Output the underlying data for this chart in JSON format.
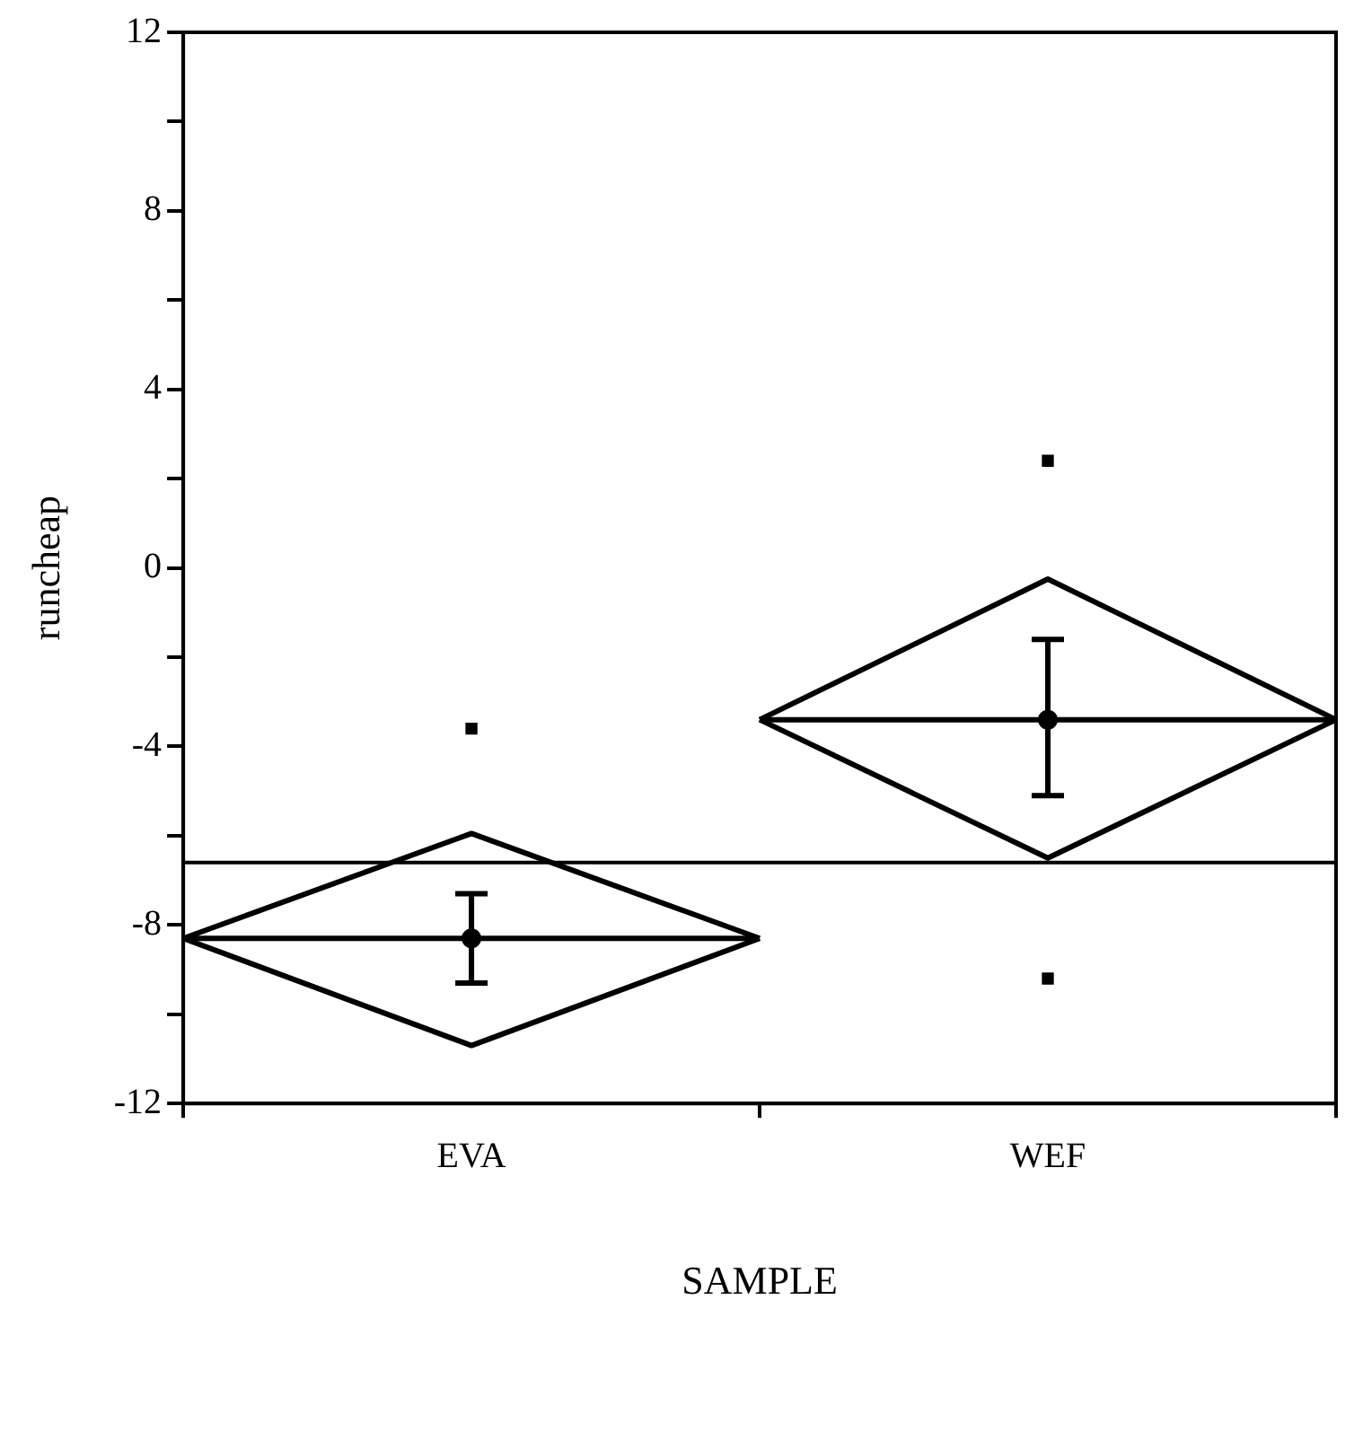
{
  "chart_data": {
    "type": "scatter",
    "xlabel": "SAMPLE",
    "ylabel": "runcheap",
    "categories": [
      null,
      "EVA",
      null,
      "WEF",
      null
    ],
    "ylim": [
      -12,
      12
    ],
    "yticks": [
      -12,
      {
        "value": -10,
        "label": null
      },
      -8,
      {
        "value": -6,
        "label": null
      },
      -4,
      {
        "value": -2,
        "label": null
      },
      0,
      {
        "value": 2,
        "label": null
      },
      4,
      {
        "value": 6,
        "label": null
      },
      8,
      {
        "value": 10,
        "label": null
      },
      12
    ],
    "grid": false,
    "legend": false,
    "ref_lines": [
      {
        "axis": "y",
        "value": -6.6,
        "color": "#000000"
      }
    ],
    "series": [
      {
        "type": "line",
        "color": "#000000",
        "marker": "none",
        "values": [
          -8.3,
          -5.95,
          -8.3,
          null,
          null
        ]
      },
      {
        "type": "line",
        "color": "#000000",
        "marker": "none",
        "values": [
          -8.3,
          -8.3,
          -8.3,
          null,
          null
        ]
      },
      {
        "type": "line",
        "color": "#000000",
        "marker": "none",
        "values": [
          -8.3,
          -10.7,
          -8.3,
          null,
          null
        ]
      },
      {
        "type": "line",
        "color": "#000000",
        "marker": "none",
        "values": [
          null,
          null,
          -3.4,
          -0.25,
          -3.4
        ]
      },
      {
        "type": "line",
        "color": "#000000",
        "marker": "none",
        "values": [
          null,
          null,
          -3.4,
          -3.4,
          -3.4
        ]
      },
      {
        "type": "line",
        "color": "#000000",
        "marker": "none",
        "values": [
          null,
          null,
          -3.4,
          -6.5,
          -3.4
        ]
      },
      {
        "color": "#000000",
        "marker": "circle",
        "values": [
          null,
          -8.3,
          null,
          -3.4,
          null
        ],
        "errors": [
          null,
          [
            -9.3,
            -7.3
          ],
          null,
          [
            -5.1,
            -1.6
          ],
          null
        ]
      },
      {
        "color": "#000000",
        "marker": "square",
        "values": [
          null,
          -3.6,
          null,
          2.4,
          null
        ]
      },
      {
        "color": "#000000",
        "marker": "square",
        "values": [
          null,
          null,
          null,
          -9.2,
          null
        ]
      }
    ]
  }
}
